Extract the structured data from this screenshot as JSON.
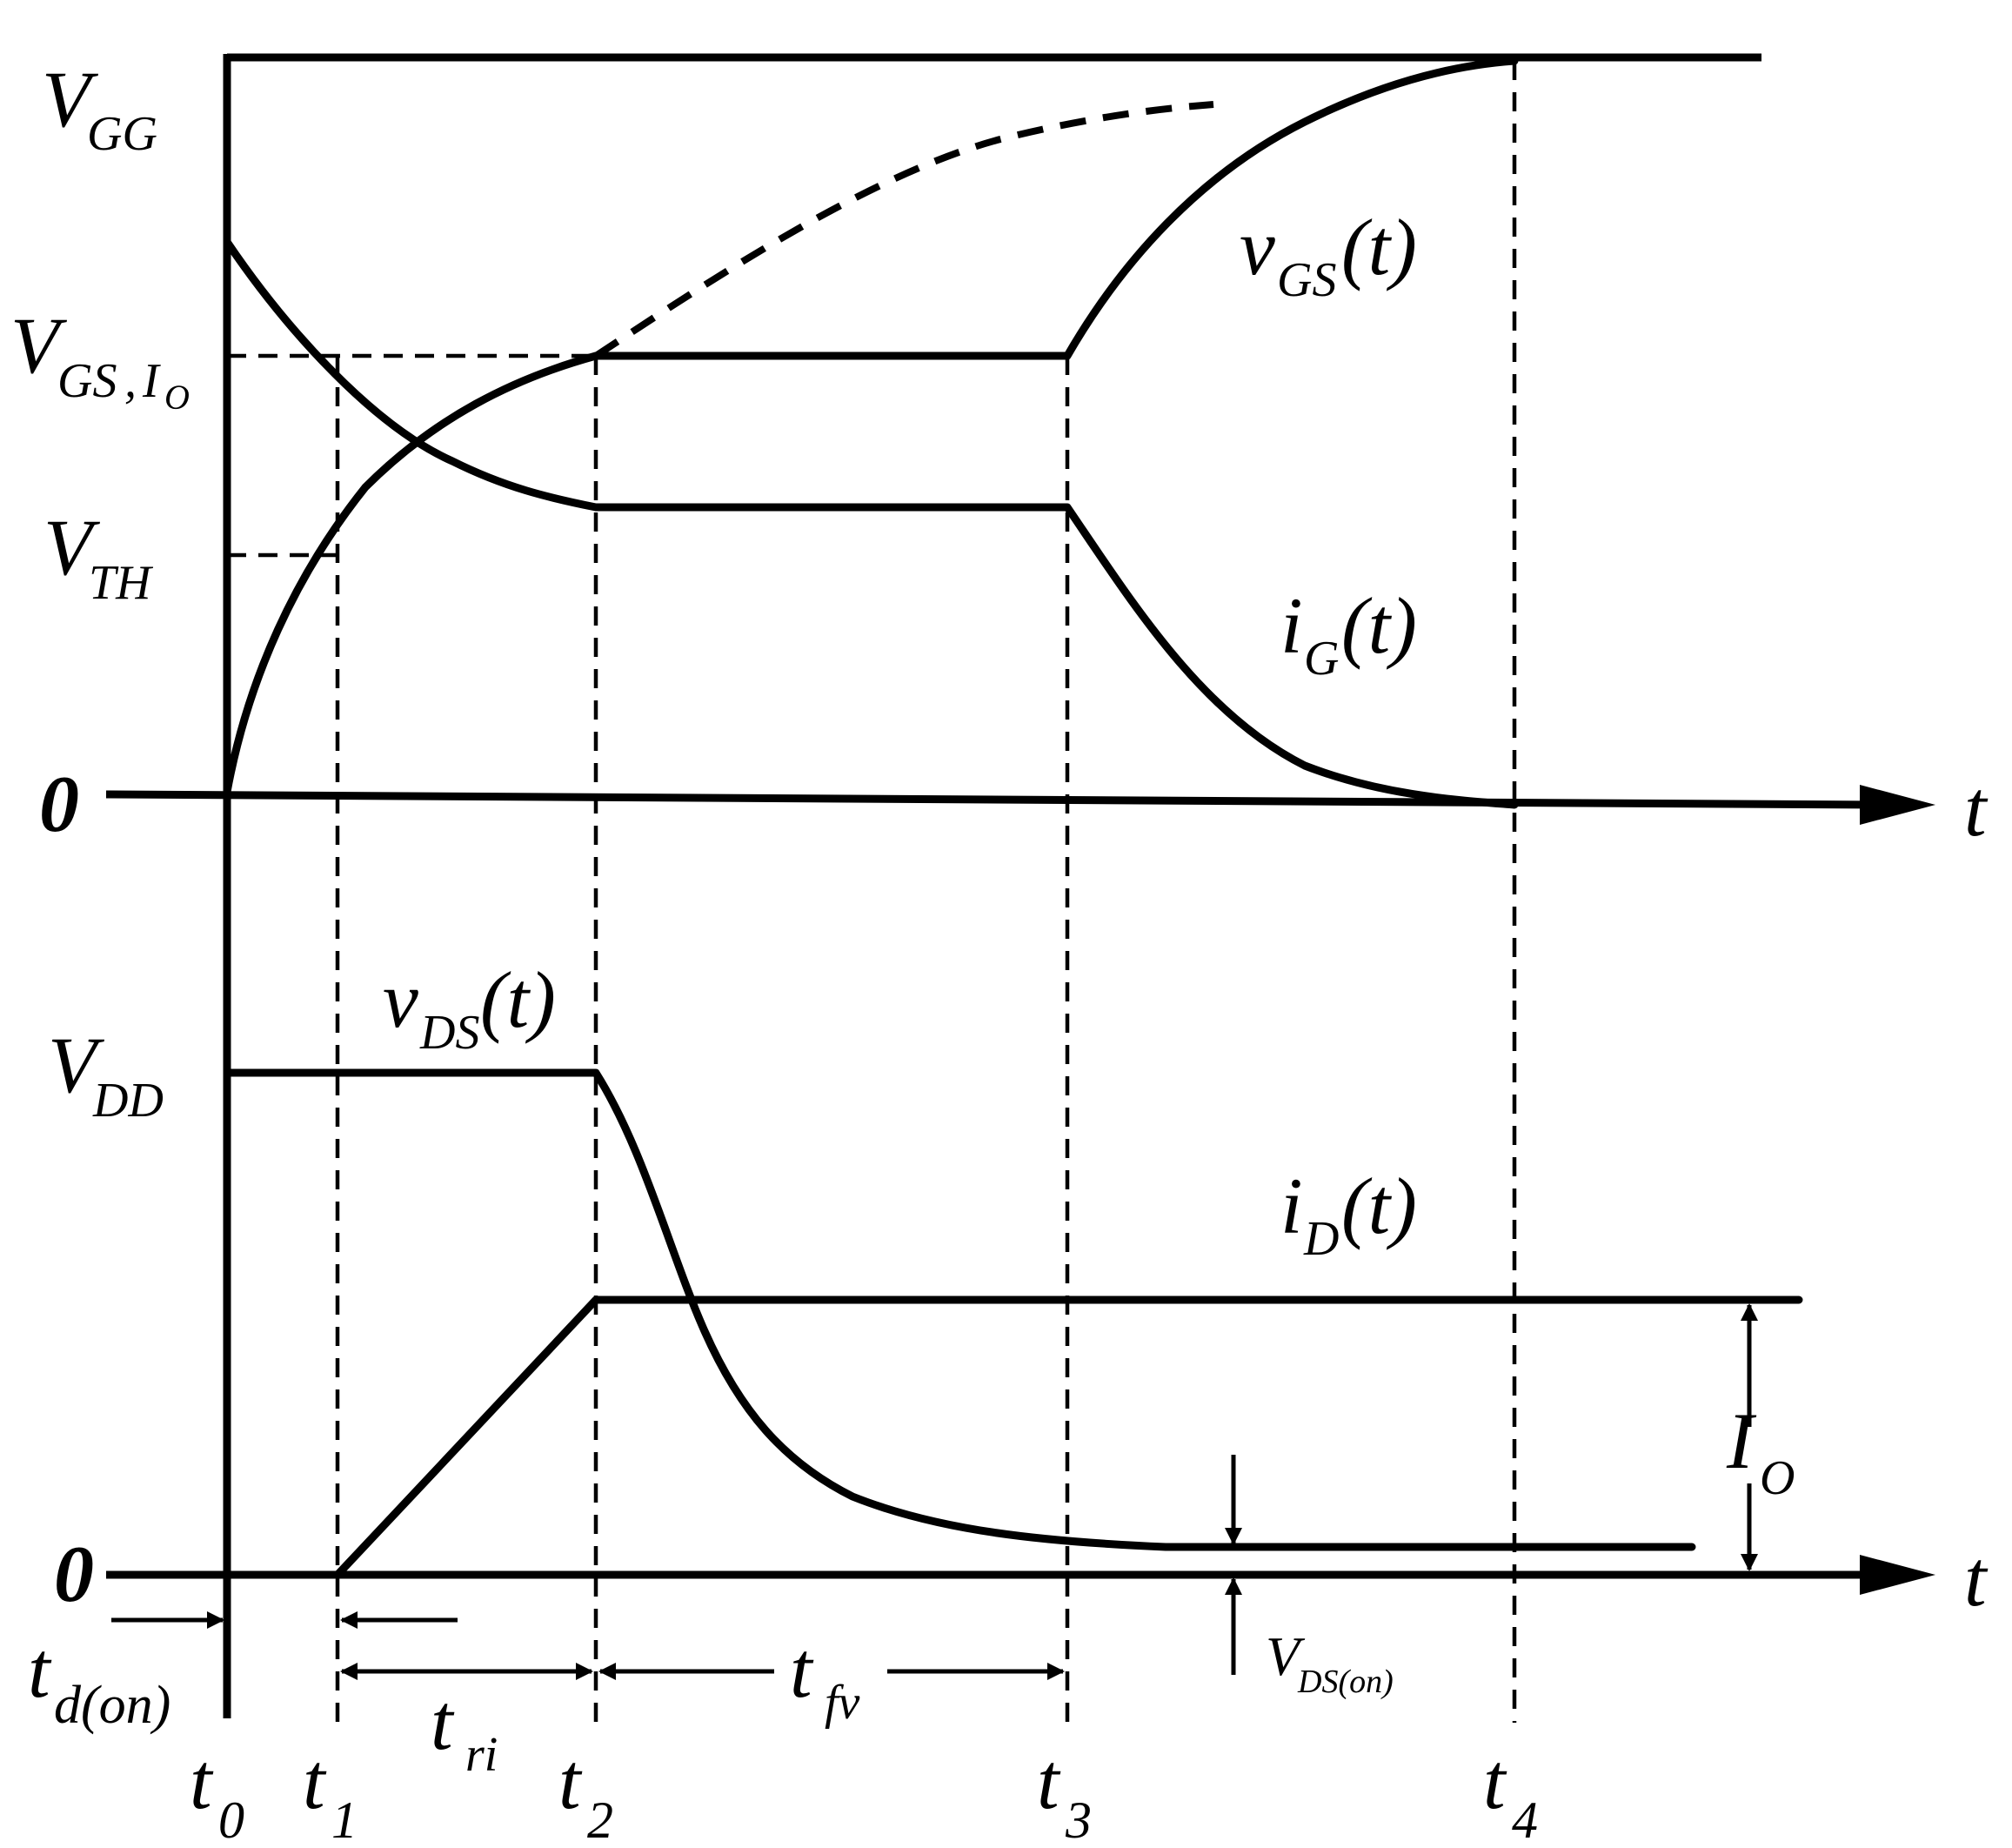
{
  "labels": {
    "vgg_main": "V",
    "vgg_sub": "GG",
    "vgsio_main": "V",
    "vgsio_sub": "GS",
    "vgsio_sep": ",",
    "vgsio_sub2": "I",
    "vgsio_sub3": "O",
    "vth_main": "V",
    "vth_sub": "TH",
    "zero_top": "0",
    "t_axis_top": "t",
    "vdd_main": "V",
    "vdd_sub": "DD",
    "zero_bottom": "0",
    "t_axis_bottom": "t",
    "vgs_main": "v",
    "vgs_sub": "GS",
    "vgs_arg": "(t)",
    "ig_main": "i",
    "ig_sub": "G",
    "ig_arg": "(t)",
    "vds_main": "v",
    "vds_sub": "DS",
    "vds_arg": "(t)",
    "id_main": "i",
    "id_sub": "D",
    "id_arg": "(t)",
    "io_main": "I",
    "io_sub": "O",
    "vdson_main": "V",
    "vdson_sub": "DS(on)",
    "tdon_main": "t",
    "tdon_sub": "d(on)",
    "tri_main": "t",
    "tri_sub": "ri",
    "tfv_main": "t",
    "tfv_sub": "fv",
    "t0_main": "t",
    "t0_sub": "0",
    "t1_main": "t",
    "t1_sub": "1",
    "t2_main": "t",
    "t2_sub": "2",
    "t3_main": "t",
    "t3_sub": "3",
    "t4_main": "t",
    "t4_sub": "4"
  }
}
